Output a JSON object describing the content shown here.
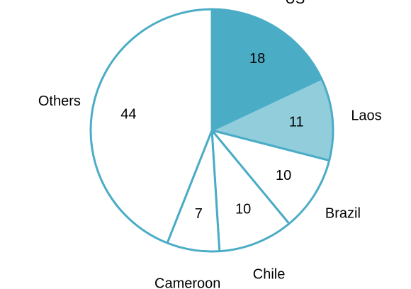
{
  "chart_data": {
    "type": "pie",
    "categories": [
      "US",
      "Laos",
      "Brazil",
      "Chile",
      "Cameroon",
      "Others"
    ],
    "values": [
      18,
      11,
      10,
      10,
      7,
      44
    ],
    "title": "",
    "start_angle": "12 o'clock",
    "direction": "clockwise",
    "legend": "none",
    "labels": "category outside, value inside",
    "colors": {
      "outline": "#4BACC6",
      "US": "#4BACC6",
      "Laos": "#92CDDC",
      "Brazil": "#FFFFFF",
      "Chile": "#FFFFFF",
      "Cameroon": "#FFFFFF",
      "Others": "#FFFFFF"
    }
  }
}
